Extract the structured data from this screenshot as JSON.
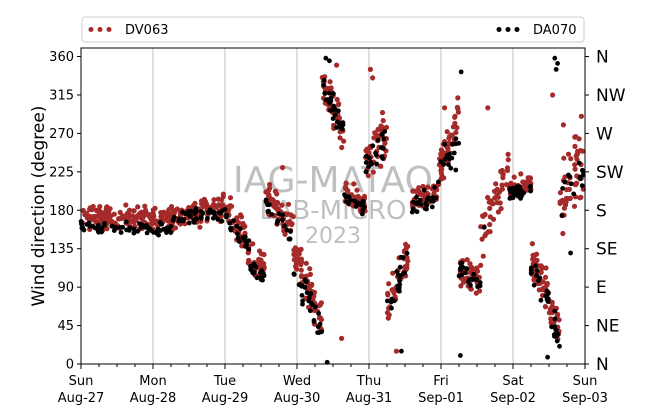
{
  "chart_data": {
    "type": "scatter",
    "title": "",
    "ylabel": "Wind direction (degree)",
    "xlabel": "",
    "ylim": [
      0,
      370
    ],
    "y_ticks": [
      0,
      45,
      90,
      135,
      180,
      225,
      270,
      315,
      360
    ],
    "compass_labels": [
      {
        "value": 0,
        "label": "N"
      },
      {
        "value": 45,
        "label": "NE"
      },
      {
        "value": 90,
        "label": "E"
      },
      {
        "value": 135,
        "label": "SE"
      },
      {
        "value": 180,
        "label": "S"
      },
      {
        "value": 225,
        "label": "SW"
      },
      {
        "value": 270,
        "label": "W"
      },
      {
        "value": 315,
        "label": "NW"
      },
      {
        "value": 360,
        "label": "N"
      }
    ],
    "x_range": [
      "Aug-27",
      "Sep-03"
    ],
    "x_ticks": [
      {
        "day": "Sun",
        "date": "Aug-27"
      },
      {
        "day": "Mon",
        "date": "Aug-28"
      },
      {
        "day": "Tue",
        "date": "Aug-29"
      },
      {
        "day": "Wed",
        "date": "Aug-30"
      },
      {
        "day": "Thu",
        "date": "Aug-31"
      },
      {
        "day": "Fri",
        "date": "Sep-01"
      },
      {
        "day": "Sat",
        "date": "Sep-02"
      },
      {
        "day": "Sun",
        "date": "Sep-03"
      }
    ],
    "grid": "x-major",
    "legend_position": "top",
    "series": [
      {
        "name": "DV063",
        "color": "#a52a2a",
        "segments": [
          {
            "t0": 0.0,
            "t1": 1.25,
            "y0": 172,
            "y1": 170,
            "spread": 11,
            "n": 170
          },
          {
            "t0": 1.25,
            "t1": 2.0,
            "y0": 172,
            "y1": 185,
            "spread": 13,
            "n": 110
          },
          {
            "t0": 2.0,
            "t1": 2.3,
            "y0": 185,
            "y1": 150,
            "spread": 14,
            "n": 45
          },
          {
            "t0": 2.3,
            "t1": 2.55,
            "y0": 130,
            "y1": 110,
            "spread": 16,
            "n": 35
          },
          {
            "t0": 2.55,
            "t1": 2.95,
            "y0": 200,
            "y1": 160,
            "spread": 15,
            "n": 55
          },
          {
            "t0": 2.95,
            "t1": 3.35,
            "y0": 130,
            "y1": 50,
            "spread": 20,
            "n": 70
          },
          {
            "t0": 3.35,
            "t1": 3.65,
            "y0": 330,
            "y1": 270,
            "spread": 18,
            "n": 55
          },
          {
            "t0": 3.65,
            "t1": 3.95,
            "y0": 200,
            "y1": 185,
            "spread": 12,
            "n": 45
          },
          {
            "t0": 3.95,
            "t1": 4.25,
            "y0": 230,
            "y1": 270,
            "spread": 25,
            "n": 45
          },
          {
            "t0": 4.25,
            "t1": 4.55,
            "y0": 60,
            "y1": 130,
            "spread": 22,
            "n": 45
          },
          {
            "t0": 4.6,
            "t1": 4.95,
            "y0": 190,
            "y1": 200,
            "spread": 12,
            "n": 45
          },
          {
            "t0": 4.95,
            "t1": 5.25,
            "y0": 220,
            "y1": 290,
            "spread": 22,
            "n": 50
          },
          {
            "t0": 5.25,
            "t1": 5.55,
            "y0": 110,
            "y1": 95,
            "spread": 16,
            "n": 45
          },
          {
            "t0": 5.55,
            "t1": 5.95,
            "y0": 140,
            "y1": 240,
            "spread": 25,
            "n": 45
          },
          {
            "t0": 5.95,
            "t1": 6.25,
            "y0": 205,
            "y1": 210,
            "spread": 10,
            "n": 50
          },
          {
            "t0": 6.25,
            "t1": 6.65,
            "y0": 130,
            "y1": 40,
            "spread": 20,
            "n": 70
          },
          {
            "t0": 6.65,
            "t1": 7.0,
            "y0": 190,
            "y1": 240,
            "spread": 35,
            "n": 50
          }
        ],
        "scattered": [
          {
            "t": 4.02,
            "y": 345
          },
          {
            "t": 4.05,
            "y": 335
          },
          {
            "t": 3.55,
            "y": 350
          },
          {
            "t": 5.05,
            "y": 300
          },
          {
            "t": 6.55,
            "y": 315
          },
          {
            "t": 6.7,
            "y": 280
          },
          {
            "t": 4.38,
            "y": 15
          },
          {
            "t": 3.62,
            "y": 30
          },
          {
            "t": 2.8,
            "y": 230
          },
          {
            "t": 5.65,
            "y": 300
          },
          {
            "t": 6.95,
            "y": 290
          }
        ]
      },
      {
        "name": "DA070",
        "color": "#000000",
        "segments": [
          {
            "t0": 0.0,
            "t1": 1.25,
            "y0": 162,
            "y1": 158,
            "spread": 7,
            "n": 60
          },
          {
            "t0": 1.25,
            "t1": 2.05,
            "y0": 170,
            "y1": 178,
            "spread": 8,
            "n": 45
          },
          {
            "t0": 2.05,
            "t1": 2.35,
            "y0": 160,
            "y1": 140,
            "spread": 10,
            "n": 18
          },
          {
            "t0": 2.35,
            "t1": 2.55,
            "y0": 115,
            "y1": 100,
            "spread": 10,
            "n": 18
          },
          {
            "t0": 2.55,
            "t1": 2.95,
            "y0": 185,
            "y1": 150,
            "spread": 12,
            "n": 18
          },
          {
            "t0": 2.95,
            "t1": 3.35,
            "y0": 110,
            "y1": 40,
            "spread": 16,
            "n": 28
          },
          {
            "t0": 3.35,
            "t1": 3.65,
            "y0": 330,
            "y1": 270,
            "spread": 14,
            "n": 30
          },
          {
            "t0": 3.65,
            "t1": 3.95,
            "y0": 195,
            "y1": 185,
            "spread": 8,
            "n": 20
          },
          {
            "t0": 3.95,
            "t1": 4.25,
            "y0": 230,
            "y1": 265,
            "spread": 16,
            "n": 20
          },
          {
            "t0": 4.25,
            "t1": 4.55,
            "y0": 60,
            "y1": 130,
            "spread": 18,
            "n": 20
          },
          {
            "t0": 4.6,
            "t1": 4.95,
            "y0": 185,
            "y1": 195,
            "spread": 10,
            "n": 22
          },
          {
            "t0": 4.95,
            "t1": 5.25,
            "y0": 220,
            "y1": 260,
            "spread": 18,
            "n": 18
          },
          {
            "t0": 5.25,
            "t1": 5.55,
            "y0": 110,
            "y1": 95,
            "spread": 12,
            "n": 22
          },
          {
            "t0": 5.95,
            "t1": 6.25,
            "y0": 200,
            "y1": 205,
            "spread": 8,
            "n": 30
          },
          {
            "t0": 6.25,
            "t1": 6.65,
            "y0": 120,
            "y1": 30,
            "spread": 18,
            "n": 30
          },
          {
            "t0": 6.65,
            "t1": 7.0,
            "y0": 200,
            "y1": 220,
            "spread": 22,
            "n": 15
          }
        ],
        "scattered": [
          {
            "t": 3.4,
            "y": 358
          },
          {
            "t": 3.45,
            "y": 355
          },
          {
            "t": 6.58,
            "y": 358
          },
          {
            "t": 6.62,
            "y": 352
          },
          {
            "t": 6.6,
            "y": 345
          },
          {
            "t": 5.28,
            "y": 342
          },
          {
            "t": 5.27,
            "y": 10
          },
          {
            "t": 6.48,
            "y": 8
          },
          {
            "t": 3.42,
            "y": 2
          },
          {
            "t": 4.45,
            "y": 15
          },
          {
            "t": 5.6,
            "y": 160
          },
          {
            "t": 6.8,
            "y": 130
          }
        ]
      }
    ],
    "watermark": [
      "IAG-MATAO",
      "LAB-MICRO",
      "2023"
    ]
  }
}
